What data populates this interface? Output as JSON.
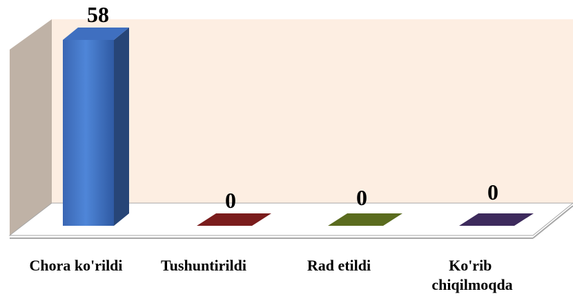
{
  "chart_data": {
    "type": "bar",
    "style": "3d-column",
    "categories": [
      "Chora ko'rildi",
      "Tushuntirildi",
      "Rad etildi",
      "Ko'rib chiqilmoqda"
    ],
    "values": [
      58,
      0,
      0,
      0
    ],
    "data_labels": [
      "58",
      "0",
      "0",
      "0"
    ],
    "ylim": [
      0,
      58
    ],
    "grid": false,
    "legend": "none",
    "colors": [
      "#3f6fc0",
      "#7a1c1c",
      "#5a6b1e",
      "#3d2a5c"
    ],
    "back_wall_color": "#fdeee2",
    "side_wall_color": "#bfb2a6"
  }
}
